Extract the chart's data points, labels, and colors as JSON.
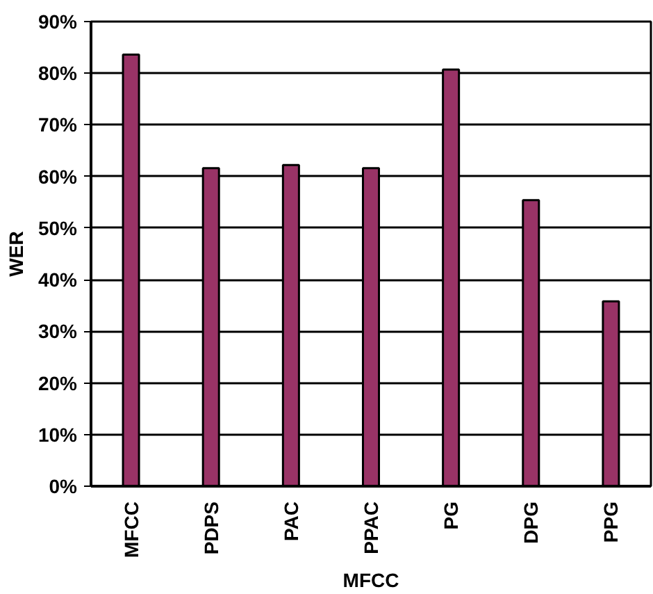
{
  "chart_data": {
    "type": "bar",
    "xlabel": "MFCC",
    "ylabel": "WER",
    "categories": [
      "MFCC",
      "PDPS",
      "PAC",
      "PPAC",
      "PG",
      "DPG",
      "PPG"
    ],
    "values": [
      83.6,
      61.6,
      62.2,
      61.6,
      80.7,
      55.4,
      35.8
    ],
    "color": "#993366",
    "ylim": [
      0,
      90
    ],
    "yticks": [
      {
        "value": 0,
        "label": "0%"
      },
      {
        "value": 10,
        "label": "10%"
      },
      {
        "value": 20,
        "label": "20%"
      },
      {
        "value": 30,
        "label": "30%"
      },
      {
        "value": 40,
        "label": "40%"
      },
      {
        "value": 50,
        "label": "50%"
      },
      {
        "value": 60,
        "label": "60%"
      },
      {
        "value": 70,
        "label": "70%"
      },
      {
        "value": 80,
        "label": "80%"
      },
      {
        "value": 90,
        "label": "90%"
      }
    ],
    "grid": "y"
  }
}
